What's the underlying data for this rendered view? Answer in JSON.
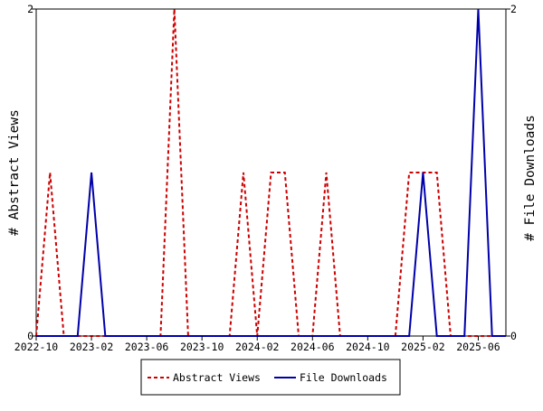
{
  "chart_data": {
    "type": "line",
    "x": [
      "2022-10",
      "2022-11",
      "2022-12",
      "2023-01",
      "2023-02",
      "2023-03",
      "2023-04",
      "2023-05",
      "2023-06",
      "2023-07",
      "2023-08",
      "2023-09",
      "2023-10",
      "2023-11",
      "2023-12",
      "2024-01",
      "2024-02",
      "2024-03",
      "2024-04",
      "2024-05",
      "2024-06",
      "2024-07",
      "2024-08",
      "2024-09",
      "2024-10",
      "2024-11",
      "2024-12",
      "2025-01",
      "2025-02",
      "2025-03",
      "2025-04",
      "2025-05",
      "2025-06",
      "2025-07",
      "2025-08"
    ],
    "x_tick_labels": [
      "2022-10",
      "2023-02",
      "2023-06",
      "2023-10",
      "2024-02",
      "2024-06",
      "2024-10",
      "2025-02",
      "2025-06"
    ],
    "ylabel_left": "# Abstract Views",
    "ylabel_right": "# File Downloads",
    "ylim_left": [
      0,
      2
    ],
    "ylim_right": [
      0,
      2
    ],
    "y_ticks_left": [
      "0",
      "2"
    ],
    "y_ticks_right": [
      "0",
      "2"
    ],
    "grid": false,
    "legend_position": "bottom",
    "series": [
      {
        "name": "Abstract Views",
        "axis": "left",
        "color": "#cc0000",
        "style": "dashed",
        "values": [
          0,
          1,
          0,
          0,
          0,
          0,
          0,
          0,
          0,
          0,
          2,
          0,
          0,
          0,
          0,
          1,
          0,
          1,
          1,
          0,
          0,
          1,
          0,
          0,
          0,
          0,
          0,
          1,
          1,
          1,
          0,
          0,
          0,
          0,
          0
        ]
      },
      {
        "name": "File Downloads",
        "axis": "right",
        "color": "#0000aa",
        "style": "solid",
        "values": [
          0,
          0,
          0,
          0,
          1,
          0,
          0,
          0,
          0,
          0,
          0,
          0,
          0,
          0,
          0,
          0,
          0,
          0,
          0,
          0,
          0,
          0,
          0,
          0,
          0,
          0,
          0,
          0,
          1,
          0,
          0,
          0,
          2,
          0,
          0
        ]
      }
    ]
  }
}
